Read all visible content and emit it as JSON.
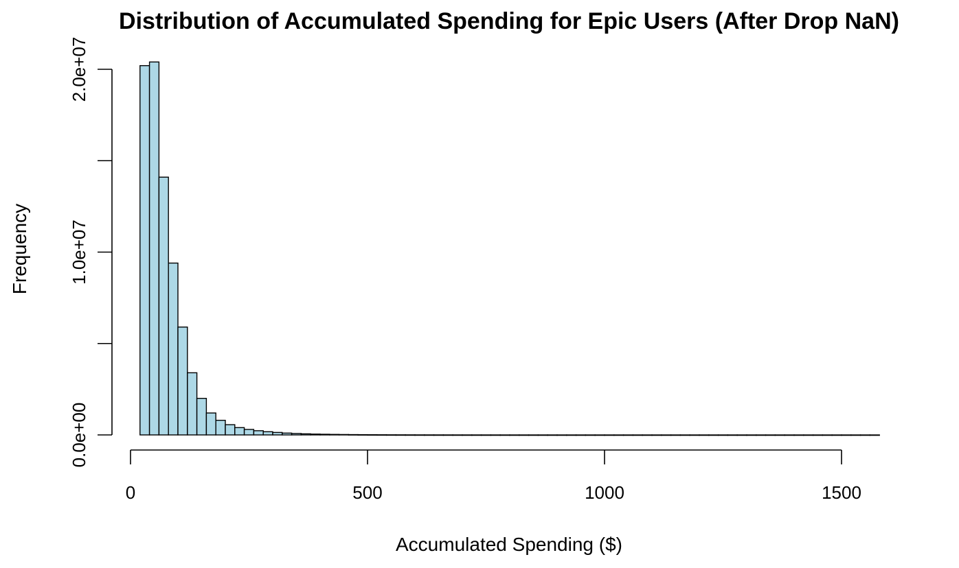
{
  "chart_data": {
    "type": "bar",
    "title": "Distribution of Accumulated Spending for Epic Users (After Drop NaN)",
    "xlabel": "Accumulated Spending ($)",
    "ylabel": "Frequency",
    "xlim": [
      0,
      1580
    ],
    "ylim": [
      0,
      20500000
    ],
    "bin_width": 20,
    "bin_start": 20,
    "values": [
      20200000,
      20400000,
      14100000,
      9400000,
      5900000,
      3400000,
      2000000,
      1200000,
      800000,
      560000,
      400000,
      300000,
      230000,
      175000,
      135000,
      100000,
      78000,
      60000,
      46000,
      36000,
      28000,
      22000,
      17000,
      13000,
      10000,
      8000,
      6000,
      5000,
      4000,
      3000,
      2500,
      2000,
      1600,
      1300,
      1000,
      800,
      650,
      500,
      400,
      320,
      260,
      210,
      170,
      140,
      110,
      90,
      75,
      60,
      50,
      40,
      32,
      26,
      21,
      17,
      14,
      11,
      9,
      7,
      6,
      5,
      4,
      3,
      3,
      2,
      2,
      2,
      1,
      1,
      1,
      1,
      1,
      1,
      1,
      1,
      1,
      1,
      1,
      1
    ],
    "x_ticks": [
      0,
      500,
      1000,
      1500
    ],
    "x_tick_labels": [
      "0",
      "500",
      "1000",
      "1500"
    ],
    "y_ticks": [
      0,
      5000000,
      10000000,
      15000000,
      20000000
    ],
    "y_tick_labels": [
      "0.0e+00",
      "",
      "1.0e+07",
      "",
      "2.0e+07"
    ],
    "bar_color": "#ADD8E6",
    "edge_color": "#000000",
    "grid": false
  }
}
